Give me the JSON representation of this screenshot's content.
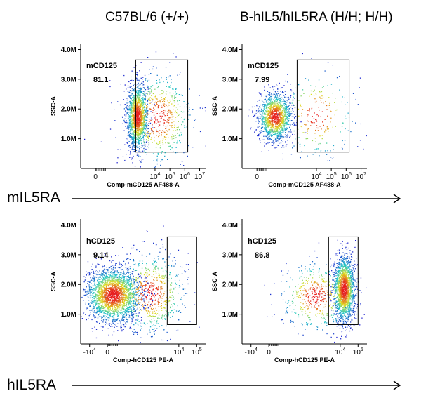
{
  "headers": {
    "col1": "C57BL/6 (+/+)",
    "col2": "B-hIL5/hIL5RA (H/H; H/H)"
  },
  "row_labels": {
    "top": "mIL5RA",
    "bottom": "hIL5RA"
  },
  "colors": {
    "axis": "#000000",
    "gate": "#000000",
    "density_low": "#1f1fd0",
    "density_mid": "#1fc8c8",
    "density_high": "#e0e020",
    "density_peak": "#e82020"
  },
  "chart_data": [
    {
      "type": "scatter",
      "panel": "top-left",
      "title": "C57BL/6 (+/+)",
      "xlabel": "Comp-mCD125 AF488-A",
      "ylabel": "SSC-A",
      "xscale": "biexponential",
      "xlim": [
        -1,
        7.4
      ],
      "ylim": [
        0,
        4.2
      ],
      "x_ticks": [
        {
          "v": 0,
          "label": "0"
        },
        {
          "v": 4,
          "label": "10^4"
        },
        {
          "v": 5,
          "label": "10^5"
        },
        {
          "v": 6,
          "label": "10^6"
        },
        {
          "v": 7,
          "label": "10^7"
        }
      ],
      "y_ticks": [
        {
          "v": 1,
          "label": "1.0M"
        },
        {
          "v": 2,
          "label": "2.0M"
        },
        {
          "v": 3,
          "label": "3.0M"
        },
        {
          "v": 4,
          "label": "4.0M"
        }
      ],
      "gate": {
        "name": "mCD125",
        "percent": "81.1",
        "x_range": [
          2.7,
          6.2
        ],
        "y_range": [
          0.55,
          3.65
        ]
      },
      "populations": [
        {
          "cx": 2.8,
          "cy": 1.75,
          "sx": 0.35,
          "sy": 0.55,
          "n": 1500
        },
        {
          "cx": 4.2,
          "cy": 1.7,
          "sx": 1.2,
          "sy": 0.8,
          "n": 600
        }
      ]
    },
    {
      "type": "scatter",
      "panel": "top-right",
      "title": "B-hIL5/hIL5RA (H/H; H/H)",
      "xlabel": "Comp-mCD125 AF488-A",
      "ylabel": "SSC-A",
      "xscale": "biexponential",
      "xlim": [
        -1,
        7.4
      ],
      "ylim": [
        0,
        4.2
      ],
      "x_ticks": [
        {
          "v": 0,
          "label": "0"
        },
        {
          "v": 4,
          "label": "10^4"
        },
        {
          "v": 5,
          "label": "10^5"
        },
        {
          "v": 6,
          "label": "10^6"
        },
        {
          "v": 7,
          "label": "10^7"
        }
      ],
      "y_ticks": [
        {
          "v": 1,
          "label": "1.0M"
        },
        {
          "v": 2,
          "label": "2.0M"
        },
        {
          "v": 3,
          "label": "3.0M"
        },
        {
          "v": 4,
          "label": "4.0M"
        }
      ],
      "gate": {
        "name": "mCD125",
        "percent": "7.99",
        "x_range": [
          2.7,
          6.2
        ],
        "y_range": [
          0.55,
          3.65
        ]
      },
      "populations": [
        {
          "cx": 1.2,
          "cy": 1.75,
          "sx": 0.55,
          "sy": 0.4,
          "n": 1400
        },
        {
          "cx": 4.0,
          "cy": 1.8,
          "sx": 1.3,
          "sy": 0.75,
          "n": 250
        }
      ]
    },
    {
      "type": "scatter",
      "panel": "bottom-left",
      "title": "C57BL/6 (+/+)",
      "xlabel": "Comp-hCD125 PE-A",
      "ylabel": "SSC-A",
      "xscale": "biexponential",
      "xlim": [
        -1.5,
        5.5
      ],
      "ylim": [
        0,
        4.2
      ],
      "x_ticks": [
        {
          "v": -1,
          "label": "-10^4"
        },
        {
          "v": 0,
          "label": "0"
        },
        {
          "v": 4,
          "label": "10^4"
        },
        {
          "v": 5,
          "label": "10^5"
        }
      ],
      "y_ticks": [
        {
          "v": 1,
          "label": "1.0M"
        },
        {
          "v": 2,
          "label": "2.0M"
        },
        {
          "v": 3,
          "label": "3.0M"
        },
        {
          "v": 4,
          "label": "4.0M"
        }
      ],
      "gate": {
        "name": "hCD125",
        "percent": "9.14",
        "x_range": [
          3.35,
          5.0
        ],
        "y_range": [
          0.65,
          3.6
        ]
      },
      "populations": [
        {
          "cx": 0.3,
          "cy": 1.65,
          "sx": 0.75,
          "sy": 0.45,
          "n": 2400
        },
        {
          "cx": 2.4,
          "cy": 1.7,
          "sx": 1.0,
          "sy": 0.7,
          "n": 700
        }
      ]
    },
    {
      "type": "scatter",
      "panel": "bottom-right",
      "title": "B-hIL5/hIL5RA (H/H; H/H)",
      "xlabel": "Comp-hCD125 PE-A",
      "ylabel": "SSC-A",
      "xscale": "biexponential",
      "xlim": [
        -1.5,
        5.5
      ],
      "ylim": [
        0,
        4.2
      ],
      "x_ticks": [
        {
          "v": -1,
          "label": "-10^4"
        },
        {
          "v": 0,
          "label": "0"
        },
        {
          "v": 4,
          "label": "10^4"
        },
        {
          "v": 5,
          "label": "10^5"
        }
      ],
      "y_ticks": [
        {
          "v": 1,
          "label": "1.0M"
        },
        {
          "v": 2,
          "label": "2.0M"
        },
        {
          "v": 3,
          "label": "3.0M"
        },
        {
          "v": 4,
          "label": "4.0M"
        }
      ],
      "gate": {
        "name": "hCD125",
        "percent": "86.8",
        "x_range": [
          3.35,
          5.0
        ],
        "y_range": [
          0.65,
          3.6
        ]
      },
      "populations": [
        {
          "cx": 4.2,
          "cy": 1.85,
          "sx": 0.3,
          "sy": 0.55,
          "n": 1700
        },
        {
          "cx": 2.6,
          "cy": 1.6,
          "sx": 1.0,
          "sy": 0.6,
          "n": 500
        }
      ]
    }
  ]
}
